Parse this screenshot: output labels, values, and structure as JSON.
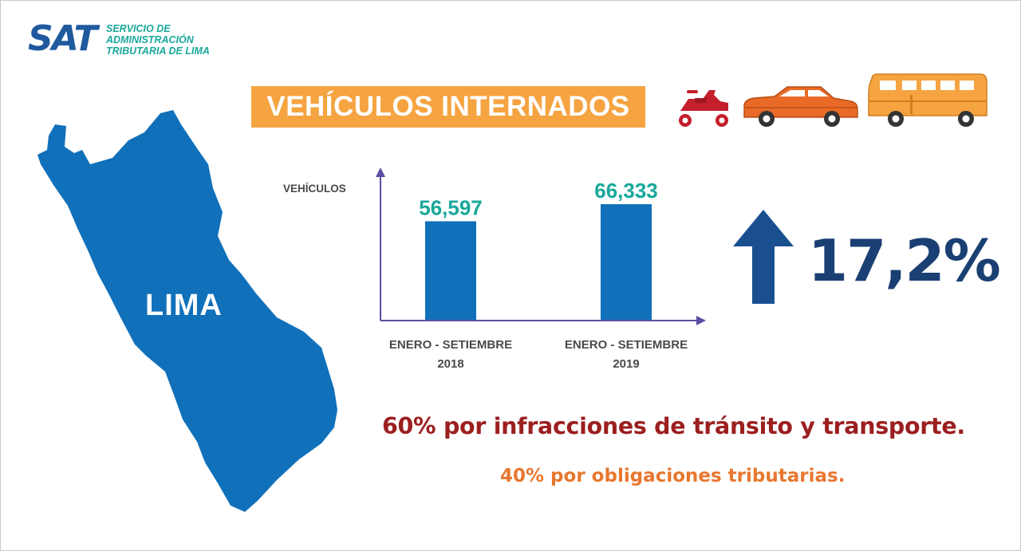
{
  "logo": {
    "mark": "SAT",
    "lines": [
      "SERVICIO DE",
      "ADMINISTRACIÓN",
      "TRIBUTARIA DE LIMA"
    ]
  },
  "title": "VEHÍCULOS INTERNADOS",
  "vehicle_icons": [
    "scooter-icon",
    "car-icon",
    "van-icon"
  ],
  "map": {
    "label": "LIMA",
    "color": "#1170ba"
  },
  "chart_data": {
    "type": "bar",
    "ylabel": "VEHÍCULOS",
    "categories": [
      {
        "line1": "ENERO - SETIEMBRE",
        "line2": "2018"
      },
      {
        "line1": "ENERO - SETIEMBRE",
        "line2": "2019"
      }
    ],
    "values": [
      56597,
      66333
    ],
    "value_labels": [
      "56,597",
      "66,333"
    ],
    "ylim": [
      0,
      80000
    ],
    "grid": false,
    "colors": {
      "bar": "#1170ba",
      "axis": "#5b4ea3",
      "value_label": "#18a89a"
    }
  },
  "change": {
    "direction": "up",
    "value": "17,2%",
    "color": "#1a3f73"
  },
  "breakdown": {
    "primary": "60% por infracciones de tránsito y transporte.",
    "secondary": "40% por obligaciones tributarias."
  },
  "colors": {
    "accent": "#f5a441",
    "primary_text": "#9c1f20",
    "secondary_text": "#e8772e"
  }
}
